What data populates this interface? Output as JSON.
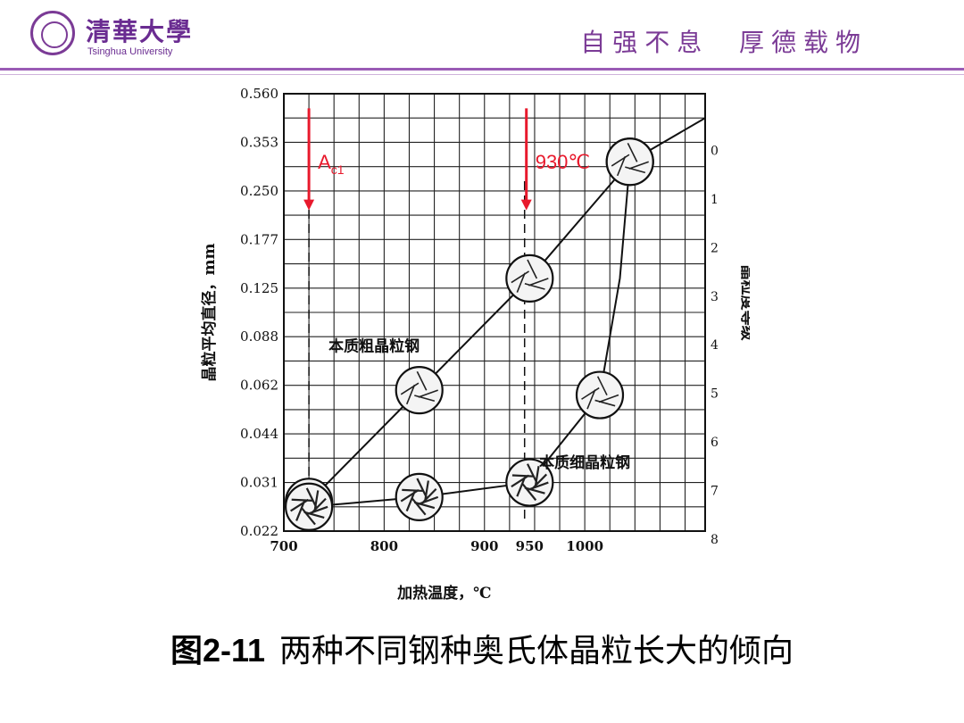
{
  "header": {
    "logo_cn": "清華大學",
    "logo_en": "Tsinghua University",
    "motto": "自强不息  厚德载物"
  },
  "caption": {
    "number": "图2-11",
    "text": "两种不同钢种奥氏体晶粒长大的倾向"
  },
  "colors": {
    "accent": "#7b3b96",
    "arrow": "#e8192c"
  },
  "chart_data": {
    "type": "line",
    "xlabel": "加热温度，℃",
    "ylabel": "晶粒平均直径，mm",
    "y2label": "晶粒度等级",
    "x_ticks": [
      "700",
      "800",
      "900",
      "950",
      "1000"
    ],
    "y_ticks": [
      "0.560",
      "0.353",
      "0.250",
      "0.177",
      "0.125",
      "0.088",
      "0.062",
      "0.044",
      "0.031",
      "0.022"
    ],
    "y2_ticks": [
      "0",
      "1",
      "2",
      "3",
      "4",
      "5",
      "6",
      "7",
      "8"
    ],
    "xlim": [
      700,
      1120
    ],
    "grid": true,
    "series": [
      {
        "name": "本质粗晶粒钢",
        "x": [
          725,
          835,
          945,
          1045,
          1120
        ],
        "grade": [
          7.4,
          5.1,
          2.8,
          0.4,
          -0.5
        ]
      },
      {
        "name": "本质细晶粒钢",
        "x": [
          725,
          835,
          945,
          1015,
          1035,
          1045
        ],
        "grade": [
          7.5,
          7.3,
          7.0,
          5.2,
          2.8,
          0.4
        ]
      }
    ],
    "annotations": [
      {
        "label": "A",
        "sub": "c1",
        "x": 725
      },
      {
        "label": "930℃",
        "x": 940
      }
    ]
  }
}
